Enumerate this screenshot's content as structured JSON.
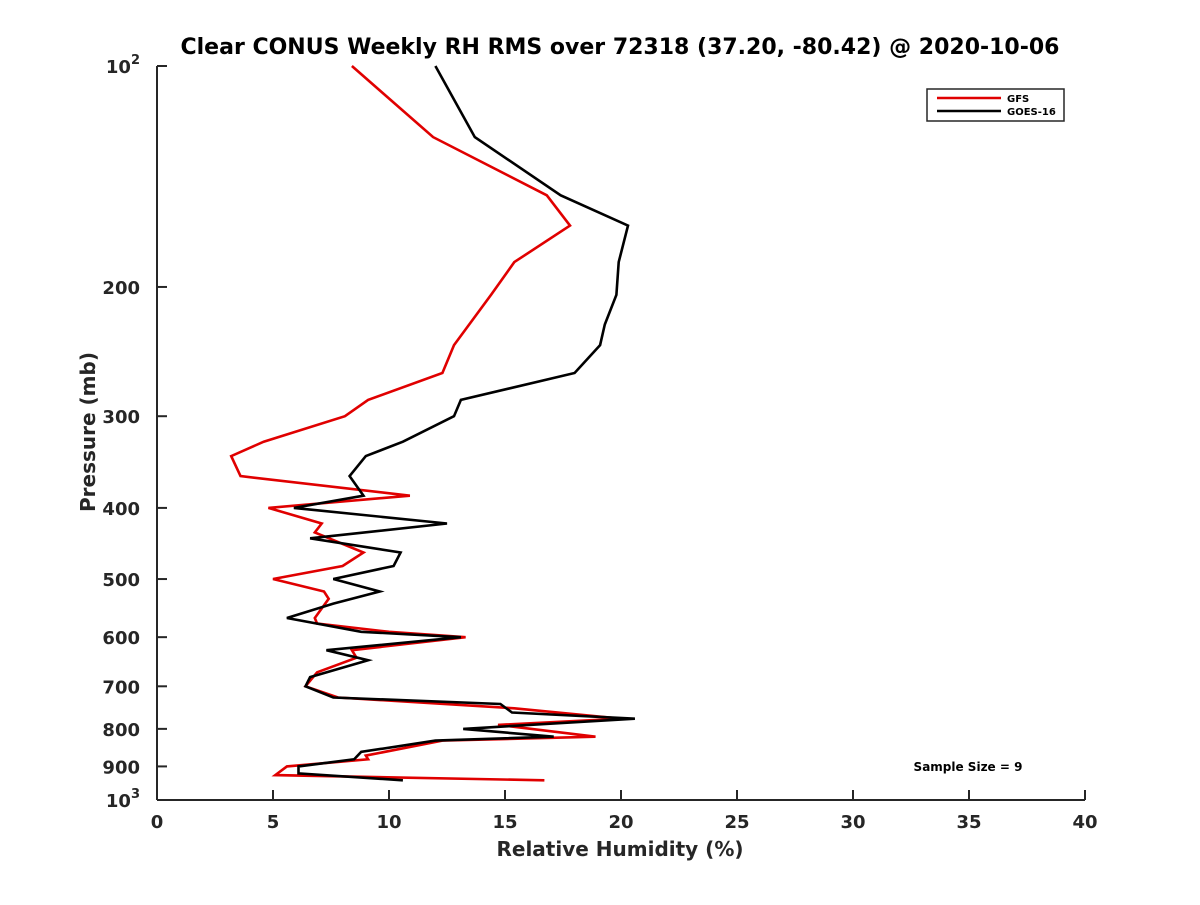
{
  "chart_data": {
    "type": "line",
    "title": "Clear CONUS Weekly RH RMS over 72318 (37.20, -80.42) @ 2020-10-06",
    "xlabel": "Relative Humidity (%)",
    "ylabel": "Pressure (mb)",
    "xlim": [
      0,
      40
    ],
    "ylim": [
      100,
      1000
    ],
    "yscale": "log",
    "y_reversed": true,
    "grid": false,
    "legend_position": "top-right",
    "x_ticks": [
      0,
      5,
      10,
      15,
      20,
      25,
      30,
      35,
      40
    ],
    "x_tick_labels": [
      "0",
      "5",
      "10",
      "15",
      "20",
      "25",
      "30",
      "35",
      "40"
    ],
    "y_ticks": [
      100,
      200,
      300,
      400,
      500,
      600,
      700,
      800,
      900,
      1000
    ],
    "y_tick_labels": [
      {
        "base": "10",
        "exp": "2"
      },
      {
        "base": "200",
        "exp": ""
      },
      {
        "base": "300",
        "exp": ""
      },
      {
        "base": "400",
        "exp": ""
      },
      {
        "base": "500",
        "exp": ""
      },
      {
        "base": "600",
        "exp": ""
      },
      {
        "base": "700",
        "exp": ""
      },
      {
        "base": "800",
        "exp": ""
      },
      {
        "base": "900",
        "exp": ""
      },
      {
        "base": "10",
        "exp": "3"
      }
    ],
    "annotation": "Sample Size = 9",
    "series": [
      {
        "name": "GFS",
        "color": "#e00000",
        "points": [
          [
            8.4,
            100
          ],
          [
            11.9,
            125
          ],
          [
            16.8,
            150
          ],
          [
            17.8,
            165
          ],
          [
            15.4,
            185
          ],
          [
            14.4,
            205
          ],
          [
            12.8,
            240
          ],
          [
            12.3,
            262
          ],
          [
            9.1,
            285
          ],
          [
            8.1,
            300
          ],
          [
            4.6,
            325
          ],
          [
            3.2,
            340
          ],
          [
            3.6,
            362
          ],
          [
            10.9,
            385
          ],
          [
            4.8,
            400
          ],
          [
            7.1,
            420
          ],
          [
            6.8,
            432
          ],
          [
            8.9,
            460
          ],
          [
            8.0,
            480
          ],
          [
            5.0,
            500
          ],
          [
            7.2,
            520
          ],
          [
            7.4,
            532
          ],
          [
            6.8,
            565
          ],
          [
            6.9,
            575
          ],
          [
            10.0,
            590
          ],
          [
            13.3,
            600
          ],
          [
            8.4,
            625
          ],
          [
            8.6,
            640
          ],
          [
            6.9,
            670
          ],
          [
            6.4,
            700
          ],
          [
            7.8,
            725
          ],
          [
            15.4,
            750
          ],
          [
            20.0,
            775
          ],
          [
            14.7,
            790
          ],
          [
            18.9,
            820
          ],
          [
            12.3,
            830
          ],
          [
            9.0,
            870
          ],
          [
            9.1,
            880
          ],
          [
            5.6,
            900
          ],
          [
            5.1,
            925
          ],
          [
            16.7,
            940
          ]
        ]
      },
      {
        "name": "GOES-16",
        "color": "#000000",
        "points": [
          [
            12.0,
            100
          ],
          [
            13.7,
            125
          ],
          [
            17.4,
            150
          ],
          [
            20.3,
            165
          ],
          [
            19.9,
            185
          ],
          [
            19.8,
            205
          ],
          [
            19.3,
            225
          ],
          [
            19.1,
            240
          ],
          [
            18.0,
            262
          ],
          [
            13.1,
            285
          ],
          [
            12.8,
            300
          ],
          [
            10.6,
            325
          ],
          [
            9.0,
            340
          ],
          [
            8.3,
            362
          ],
          [
            8.9,
            385
          ],
          [
            5.9,
            400
          ],
          [
            12.5,
            420
          ],
          [
            6.6,
            440
          ],
          [
            10.5,
            460
          ],
          [
            10.2,
            480
          ],
          [
            7.6,
            500
          ],
          [
            9.6,
            520
          ],
          [
            7.6,
            540
          ],
          [
            5.6,
            565
          ],
          [
            8.8,
            590
          ],
          [
            13.1,
            600
          ],
          [
            7.3,
            625
          ],
          [
            9.1,
            645
          ],
          [
            6.6,
            680
          ],
          [
            6.4,
            700
          ],
          [
            7.6,
            725
          ],
          [
            14.8,
            740
          ],
          [
            15.3,
            760
          ],
          [
            20.6,
            775
          ],
          [
            13.2,
            800
          ],
          [
            17.1,
            820
          ],
          [
            12.0,
            830
          ],
          [
            8.8,
            860
          ],
          [
            8.5,
            880
          ],
          [
            6.1,
            900
          ],
          [
            6.1,
            920
          ],
          [
            10.6,
            940
          ]
        ]
      }
    ]
  }
}
